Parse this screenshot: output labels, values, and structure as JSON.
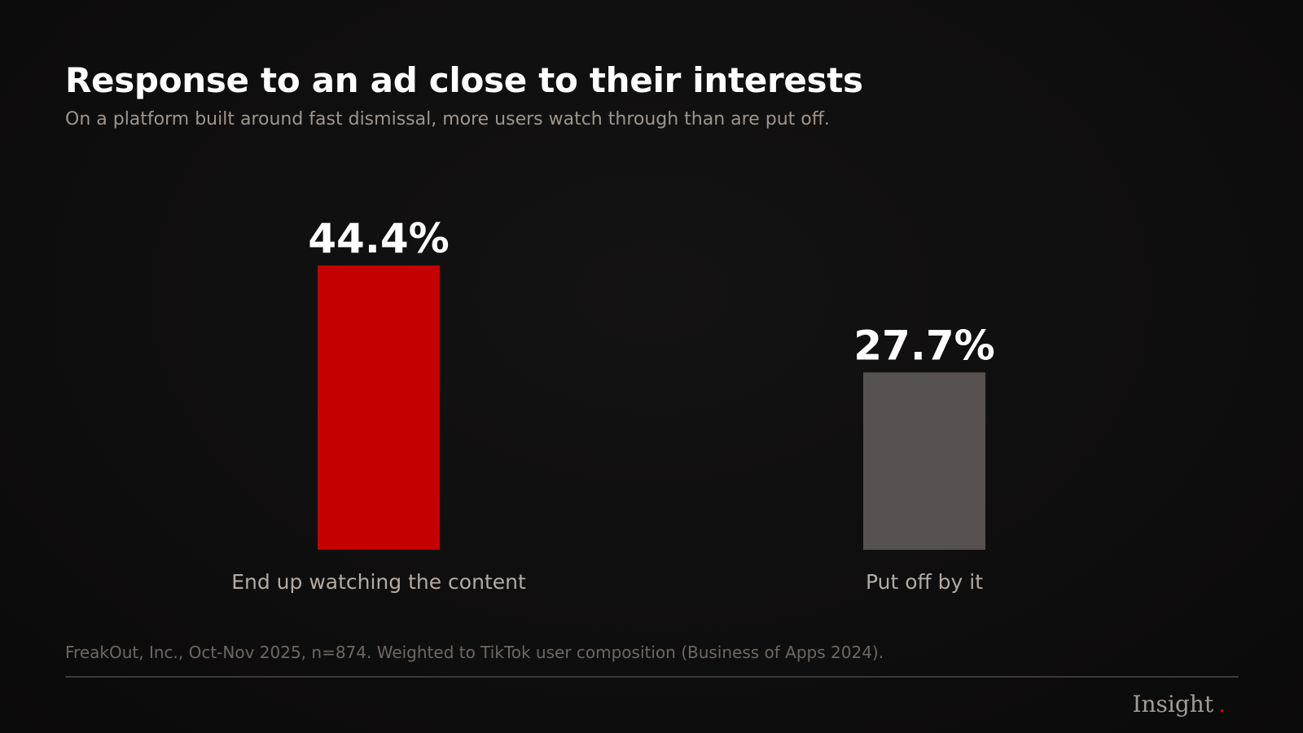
{
  "header": {
    "title": "Response to an ad close to their interests",
    "subtitle": "On a platform built around fast dismissal, more users watch through than are put off."
  },
  "chart_data": {
    "type": "bar",
    "categories": [
      "End up watching the content",
      "Put off by it"
    ],
    "values": [
      44.4,
      27.7
    ],
    "value_labels": [
      "44.4%",
      "27.7%"
    ],
    "colors": [
      "#c40000",
      "#57524f"
    ],
    "ylim": [
      0,
      44.4
    ],
    "grid": false
  },
  "footer": {
    "source": "FreakOut, Inc., Oct-Nov 2025, n=874. Weighted to TikTok user composition (Business of Apps 2024).",
    "brand": "Insight",
    "brand_dot": "."
  },
  "colors": {
    "background": "#0f0e0e",
    "accent": "#c40000",
    "secondary": "#57524f"
  }
}
